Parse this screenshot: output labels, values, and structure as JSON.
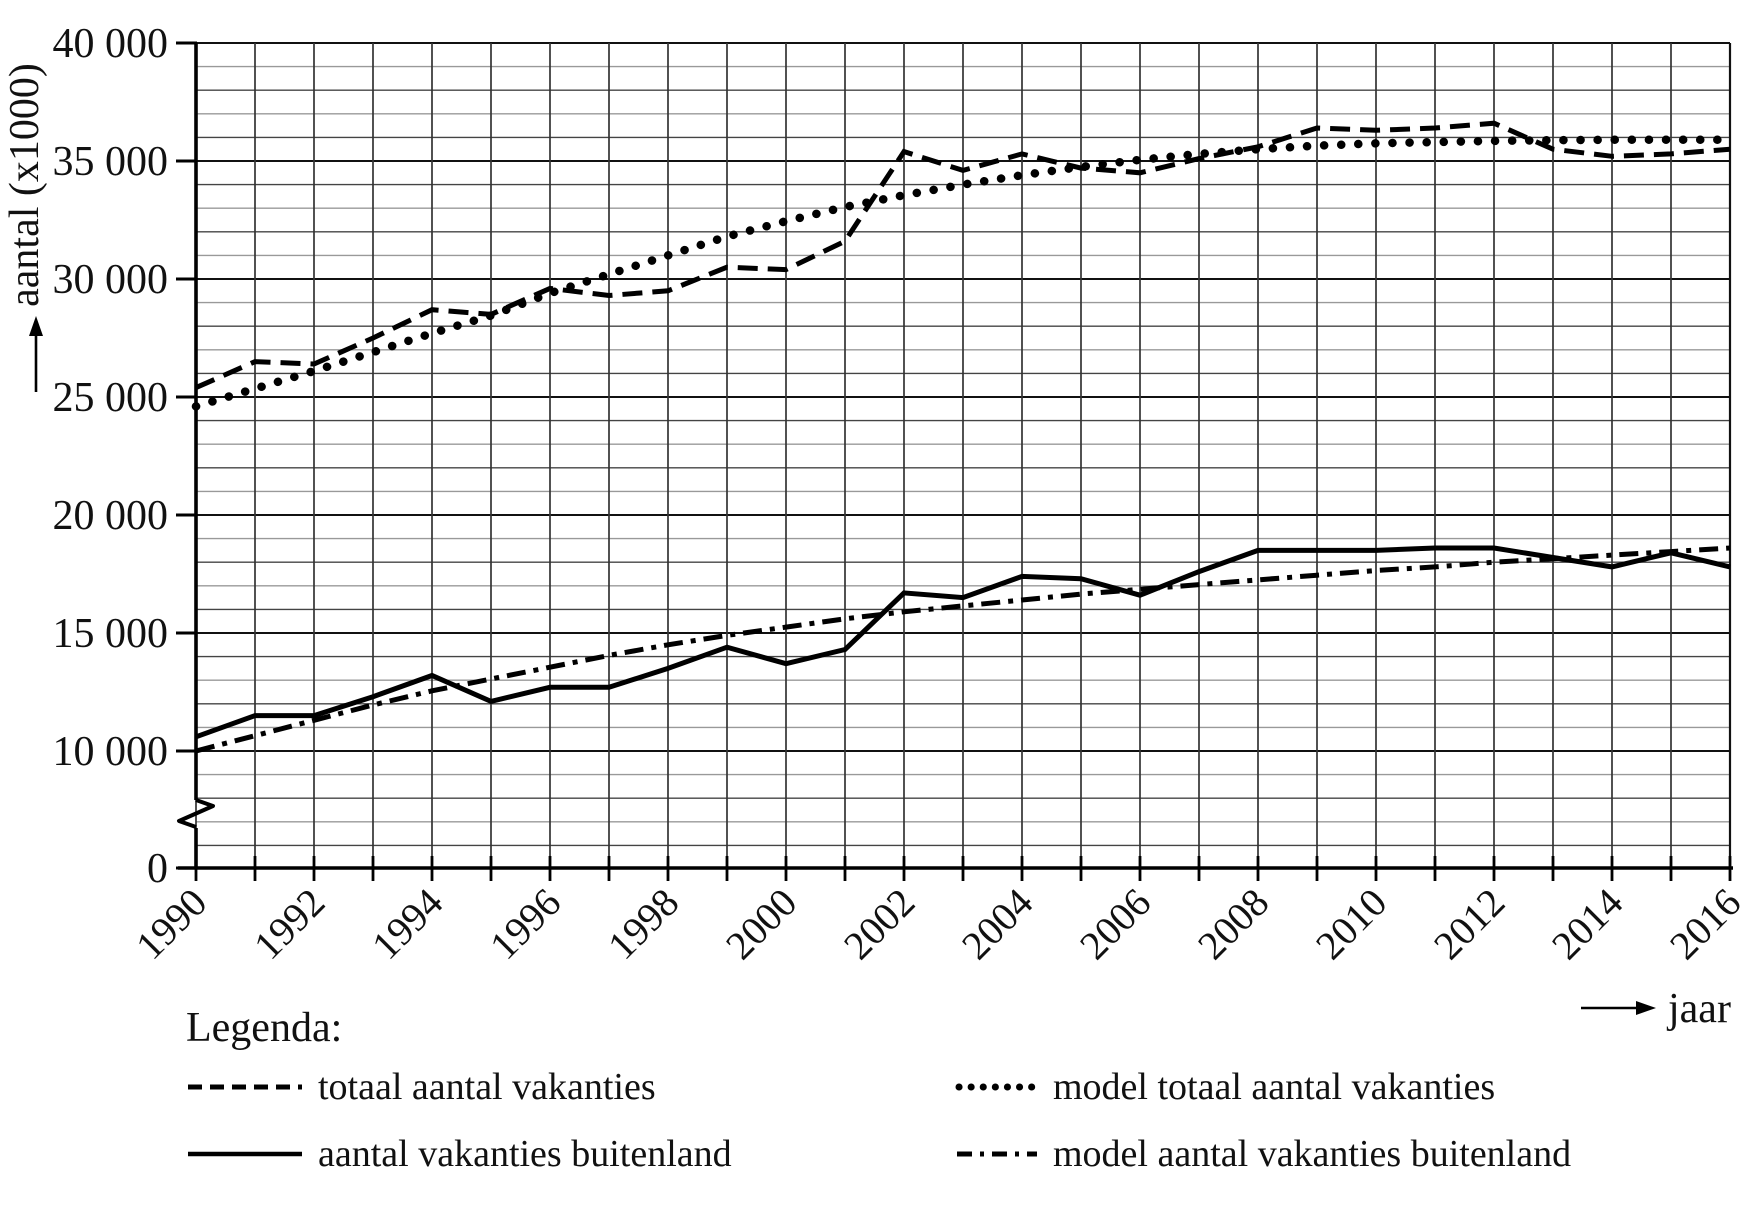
{
  "chart_data": {
    "type": "line",
    "title": "",
    "xlabel": "jaar",
    "ylabel": "aantal (x1000)",
    "x": [
      1990,
      1991,
      1992,
      1993,
      1994,
      1995,
      1996,
      1997,
      1998,
      1999,
      2000,
      2001,
      2002,
      2003,
      2004,
      2005,
      2006,
      2007,
      2008,
      2009,
      2010,
      2011,
      2012,
      2013,
      2014,
      2015,
      2016
    ],
    "x_tick_labels": [
      "1990",
      "1992",
      "1994",
      "1996",
      "1998",
      "2000",
      "2002",
      "2004",
      "2006",
      "2008",
      "2010",
      "2012",
      "2014",
      "2016"
    ],
    "y_ticks": [
      {
        "value": 40000,
        "label": "40 000"
      },
      {
        "value": 35000,
        "label": "35 000"
      },
      {
        "value": 30000,
        "label": "30 000"
      },
      {
        "value": 25000,
        "label": "25 000"
      },
      {
        "value": 20000,
        "label": "20 000"
      },
      {
        "value": 15000,
        "label": "15 000"
      },
      {
        "value": 10000,
        "label": "10 000"
      },
      {
        "value": 0,
        "label": "0"
      }
    ],
    "ylim": [
      0,
      40000
    ],
    "y_axis_break": {
      "between": [
        0,
        10000
      ]
    },
    "grid": {
      "minor_y_step": 1000,
      "minor_x_step_years": 1,
      "on": true
    },
    "legend": {
      "title": "Legenda:",
      "position": "below-left"
    },
    "series": [
      {
        "name": "totaal aantal vakanties",
        "line_style": "dashed",
        "values": [
          25400,
          26500,
          26400,
          27500,
          28700,
          28500,
          29600,
          29300,
          29500,
          30500,
          30400,
          31600,
          35400,
          34600,
          35300,
          34700,
          34500,
          35100,
          35600,
          36400,
          36300,
          36400,
          36600,
          35500,
          35200,
          35300,
          35500
        ]
      },
      {
        "name": "aantal vakanties buitenland",
        "line_style": "solid",
        "values": [
          10600,
          11500,
          11500,
          12300,
          13200,
          12100,
          12700,
          12700,
          13500,
          14400,
          13700,
          14300,
          16700,
          16500,
          17400,
          17300,
          16600,
          17600,
          18500,
          18500,
          18500,
          18600,
          18600,
          18200,
          17800,
          18400,
          17800
        ]
      },
      {
        "name": "model totaal aantal vakanties",
        "line_style": "dotted",
        "values": [
          24600,
          25350,
          26100,
          26900,
          27700,
          28450,
          29400,
          30200,
          31000,
          31800,
          32450,
          33050,
          33550,
          34000,
          34400,
          34750,
          35050,
          35300,
          35500,
          35650,
          35750,
          35800,
          35850,
          35880,
          35900,
          35900,
          35900
        ]
      },
      {
        "name": "model aantal vakanties buitenland",
        "line_style": "dashdot",
        "values": [
          10000,
          10650,
          11300,
          11950,
          12550,
          13050,
          13550,
          14050,
          14500,
          14900,
          15250,
          15600,
          15900,
          16150,
          16400,
          16650,
          16850,
          17050,
          17250,
          17450,
          17650,
          17800,
          18000,
          18150,
          18300,
          18450,
          18600
        ]
      }
    ]
  }
}
